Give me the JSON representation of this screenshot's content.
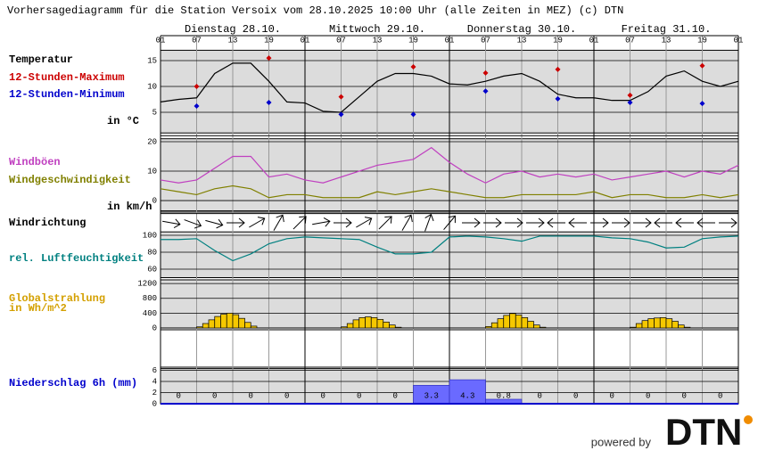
{
  "header": {
    "title": "Vorhersagediagramm für die Station Versoix vom 28.10.2025 10:00 Uhr (alle Zeiten in MEZ)   (c) DTN",
    "days": [
      "Dienstag 28.10.",
      "Mittwoch 29.10.",
      "Donnerstag 30.10.",
      "Freitag 31.10."
    ],
    "xlim": [
      0,
      96
    ],
    "xticks": [
      {
        "value": 0,
        "label": "01"
      },
      {
        "value": 6,
        "label": "07"
      },
      {
        "value": 12,
        "label": "13"
      },
      {
        "value": 18,
        "label": "19"
      },
      {
        "value": 24,
        "label": "01"
      },
      {
        "value": 30,
        "label": "07"
      },
      {
        "value": 36,
        "label": "13"
      },
      {
        "value": 42,
        "label": "19"
      },
      {
        "value": 48,
        "label": "01"
      },
      {
        "value": 54,
        "label": "07"
      },
      {
        "value": 60,
        "label": "13"
      },
      {
        "value": 66,
        "label": "19"
      },
      {
        "value": 72,
        "label": "01"
      },
      {
        "value": 78,
        "label": "07"
      },
      {
        "value": 84,
        "label": "13"
      },
      {
        "value": 90,
        "label": "19"
      },
      {
        "value": 96,
        "label": "01"
      }
    ],
    "logo_prefix": "powered by",
    "logo": "DTN"
  },
  "chart_data": [
    {
      "type": "line",
      "unit": "in °C",
      "ylim": [
        1,
        17
      ],
      "yticks": [
        5,
        10,
        15
      ],
      "series": [
        {
          "name": "Temperatur",
          "color": "#000000",
          "x": [
            0,
            3,
            6,
            9,
            12,
            15,
            18,
            21,
            24,
            27,
            30,
            33,
            36,
            39,
            42,
            45,
            48,
            51,
            54,
            57,
            60,
            63,
            66,
            69,
            72,
            75,
            78,
            81,
            84,
            87,
            90,
            93,
            96
          ],
          "values": [
            7.0,
            7.5,
            7.8,
            12.5,
            14.5,
            14.5,
            11,
            7,
            6.8,
            5.2,
            5,
            8,
            11,
            12.5,
            12.5,
            12,
            10.5,
            10.3,
            11,
            12,
            12.5,
            11,
            8.5,
            7.8,
            7.8,
            7.3,
            7.3,
            9,
            12,
            13,
            11,
            10,
            11
          ]
        },
        {
          "name": "12-Stunden-Maximum",
          "color": "#cc0000",
          "points": true,
          "x": [
            6,
            18,
            30,
            42,
            54,
            66,
            78,
            90
          ],
          "values": [
            10,
            15.5,
            8,
            13.8,
            12.6,
            13.3,
            8.3,
            14
          ]
        },
        {
          "name": "12-Stunden-Minimum",
          "color": "#0000cc",
          "points": true,
          "x": [
            6,
            18,
            30,
            42,
            54,
            66,
            78,
            90
          ],
          "values": [
            6.2,
            6.9,
            4.6,
            4.6,
            9.1,
            7.6,
            6.9,
            6.7
          ]
        }
      ]
    },
    {
      "type": "line",
      "unit": "in km/h",
      "ylim": [
        -3.5,
        21
      ],
      "yticks": [
        0,
        10,
        20
      ],
      "series": [
        {
          "name": "Windböen",
          "color": "#c040c0",
          "x": [
            0,
            3,
            6,
            9,
            12,
            15,
            18,
            21,
            24,
            27,
            30,
            33,
            36,
            39,
            42,
            45,
            48,
            51,
            54,
            57,
            60,
            63,
            66,
            69,
            72,
            75,
            78,
            81,
            84,
            87,
            90,
            93,
            96
          ],
          "values": [
            7,
            6,
            7,
            11,
            15,
            15,
            8,
            9,
            7,
            6,
            8,
            10,
            12,
            13,
            14,
            18,
            13,
            9,
            6,
            9,
            10,
            8,
            9,
            8,
            9,
            7,
            8,
            9,
            10,
            8,
            10,
            9,
            12
          ]
        },
        {
          "name": "Windgeschwindigkeit",
          "color": "#808000",
          "x": [
            0,
            3,
            6,
            9,
            12,
            15,
            18,
            21,
            24,
            27,
            30,
            33,
            36,
            39,
            42,
            45,
            48,
            51,
            54,
            57,
            60,
            63,
            66,
            69,
            72,
            75,
            78,
            81,
            84,
            87,
            90,
            93,
            96
          ],
          "values": [
            4,
            3,
            2,
            4,
            5,
            4,
            1,
            2,
            2,
            1,
            1,
            1,
            3,
            2,
            3,
            4,
            3,
            2,
            1,
            1,
            2,
            2,
            2,
            2,
            3,
            1,
            2,
            2,
            1,
            1,
            2,
            1,
            2
          ]
        }
      ]
    },
    {
      "type": "arrows",
      "name": "Windrichtung",
      "values": [
        10,
        20,
        15,
        0,
        -30,
        -60,
        -45,
        -10,
        0,
        -30,
        -45,
        -60,
        -70,
        -50,
        0,
        0,
        0,
        0,
        180,
        180,
        0,
        0,
        0,
        180,
        180,
        180,
        0
      ]
    },
    {
      "type": "line",
      "ylim": [
        50,
        104
      ],
      "yticks": [
        60,
        80,
        100
      ],
      "series": [
        {
          "name": "rel. Luftfeuchtigkeit",
          "color": "#008080",
          "x": [
            0,
            3,
            6,
            9,
            12,
            15,
            18,
            21,
            24,
            27,
            30,
            33,
            36,
            39,
            42,
            45,
            48,
            51,
            54,
            57,
            60,
            63,
            66,
            69,
            72,
            75,
            78,
            81,
            84,
            87,
            90,
            93,
            96
          ],
          "values": [
            95,
            95,
            96,
            82,
            70,
            78,
            90,
            96,
            98,
            97,
            96,
            95,
            86,
            78,
            78,
            80,
            98,
            99,
            98,
            96,
            93,
            99,
            99,
            99,
            99,
            97,
            96,
            92,
            85,
            86,
            96,
            98,
            99
          ]
        }
      ]
    },
    {
      "type": "bar",
      "name": "Globalstrahlung",
      "unit": "in Wh/m^2",
      "color": "#f5c800",
      "ylim": [
        0,
        1300
      ],
      "yticks": [
        0,
        400,
        800,
        1200
      ],
      "width": 1,
      "x": [
        6,
        7,
        8,
        9,
        10,
        11,
        12,
        13,
        14,
        15,
        30,
        31,
        32,
        33,
        34,
        35,
        36,
        37,
        38,
        39,
        54,
        55,
        56,
        57,
        58,
        59,
        60,
        61,
        62,
        63,
        78,
        79,
        80,
        81,
        82,
        83,
        84,
        85,
        86,
        87
      ],
      "values": [
        30,
        120,
        220,
        310,
        370,
        400,
        360,
        260,
        150,
        50,
        30,
        120,
        220,
        280,
        300,
        280,
        230,
        160,
        80,
        20,
        40,
        140,
        250,
        340,
        390,
        350,
        280,
        180,
        80,
        20,
        20,
        120,
        200,
        250,
        270,
        280,
        250,
        180,
        80,
        20
      ]
    },
    {
      "type": "bar",
      "name": "Niederschlag 6h (mm)",
      "color": "#6a6aff",
      "ylim": [
        0,
        6.3
      ],
      "yticks": [
        0,
        2,
        4,
        6
      ],
      "width": 6,
      "labels": true,
      "x": [
        0,
        6,
        12,
        18,
        24,
        30,
        36,
        42,
        48,
        54,
        60,
        66,
        72,
        78,
        84,
        90
      ],
      "values": [
        0,
        0,
        0,
        0,
        0,
        0,
        0,
        3.3,
        4.3,
        0.8,
        0,
        0,
        0,
        0,
        0,
        0
      ]
    }
  ]
}
